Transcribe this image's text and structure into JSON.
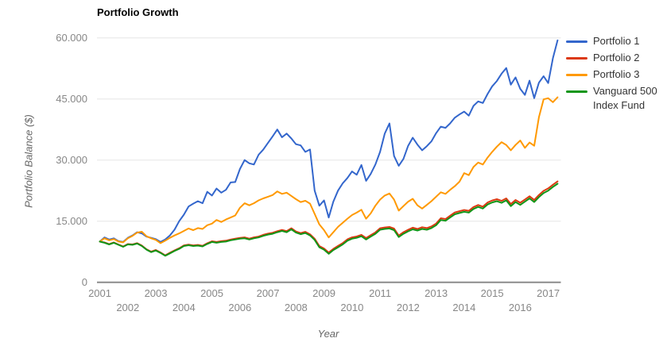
{
  "title": "Portfolio Growth",
  "axes": {
    "y_title": "Portfolio Balance ($)",
    "x_title": "Year"
  },
  "chart_data": {
    "type": "line",
    "title": "Portfolio Growth",
    "xlabel": "Year",
    "ylabel": "Portfolio Balance ($)",
    "ylim": [
      0,
      60000
    ],
    "xlim": [
      2000.9,
      2017.45
    ],
    "grid": "horizontal",
    "legend_position": "right",
    "y_ticks": [
      {
        "value": 60000,
        "label": "60.000"
      },
      {
        "value": 45000,
        "label": "45.000"
      },
      {
        "value": 30000,
        "label": "30.000"
      },
      {
        "value": 15000,
        "label": "15.000"
      },
      {
        "value": 0,
        "label": "0"
      }
    ],
    "x_ticks": [
      2001,
      2002,
      2003,
      2004,
      2005,
      2006,
      2007,
      2008,
      2009,
      2010,
      2011,
      2012,
      2013,
      2014,
      2015,
      2016,
      2017
    ],
    "x_start": 2001,
    "x_step_years": 0.16667,
    "series": [
      {
        "name": "Portfolio 1",
        "color": "#3366cc",
        "values": [
          10000,
          11000,
          10500,
          10800,
          10100,
          9900,
          10900,
          11500,
          12300,
          12000,
          11200,
          10900,
          10600,
          9900,
          10500,
          11500,
          12900,
          15000,
          16600,
          18600,
          19300,
          19900,
          19400,
          22200,
          21300,
          23000,
          22000,
          22700,
          24500,
          24600,
          27800,
          30000,
          29200,
          28900,
          31300,
          32600,
          34200,
          35800,
          37500,
          35600,
          36500,
          35300,
          33900,
          33600,
          32000,
          32600,
          22500,
          18800,
          20100,
          15900,
          19800,
          22500,
          24300,
          25600,
          27200,
          26400,
          28800,
          24900,
          26600,
          28900,
          32000,
          36500,
          39000,
          31000,
          28600,
          30300,
          33500,
          35500,
          33800,
          32400,
          33400,
          34600,
          36600,
          38200,
          37900,
          39000,
          40400,
          41200,
          41900,
          40900,
          43300,
          44400,
          44000,
          46200,
          48100,
          49400,
          51200,
          52600,
          48500,
          50300,
          47500,
          46000,
          49500,
          45200,
          49000,
          50600,
          48900,
          55000,
          59400
        ]
      },
      {
        "name": "Portfolio 2",
        "color": "#dc3912",
        "values": [
          10000,
          9770,
          9370,
          9780,
          9280,
          8790,
          9390,
          9300,
          9600,
          9010,
          8110,
          7520,
          7920,
          7330,
          6630,
          7240,
          7840,
          8350,
          9050,
          9260,
          9060,
          9170,
          8970,
          9580,
          10080,
          9890,
          10090,
          10200,
          10500,
          10710,
          10910,
          11020,
          10720,
          11030,
          11230,
          11640,
          11940,
          12150,
          12550,
          12860,
          12560,
          13270,
          12470,
          12080,
          12380,
          11790,
          10690,
          8900,
          8300,
          7310,
          8210,
          8920,
          9620,
          10530,
          11030,
          11240,
          11640,
          10850,
          11550,
          12260,
          13260,
          13470,
          13570,
          13180,
          11480,
          12290,
          12890,
          13400,
          13100,
          13510,
          13310,
          13720,
          14420,
          15730,
          15530,
          16340,
          17140,
          17450,
          17750,
          17560,
          18460,
          18970,
          18570,
          19580,
          20080,
          20390,
          19990,
          20600,
          19200,
          20210,
          19510,
          20320,
          21120,
          20230,
          21430,
          22440,
          23040,
          23950,
          24750
        ]
      },
      {
        "name": "Portfolio 3",
        "color": "#ff9900",
        "values": [
          10000,
          10800,
          10300,
          10600,
          10000,
          9800,
          10800,
          11400,
          12200,
          12400,
          11300,
          10800,
          10400,
          9600,
          10200,
          10900,
          11500,
          12000,
          12600,
          13200,
          12800,
          13300,
          13100,
          14000,
          14400,
          15300,
          14800,
          15400,
          15900,
          16400,
          18300,
          19400,
          18900,
          19400,
          20100,
          20600,
          21000,
          21400,
          22300,
          21700,
          22000,
          21200,
          20400,
          19700,
          20000,
          19300,
          16800,
          14200,
          12800,
          11000,
          12300,
          13600,
          14600,
          15600,
          16500,
          17100,
          17800,
          15600,
          16900,
          18800,
          20300,
          21300,
          21800,
          20300,
          17600,
          18700,
          19800,
          20500,
          18900,
          18100,
          19000,
          19900,
          21000,
          22100,
          21700,
          22700,
          23600,
          24700,
          26800,
          26300,
          28300,
          29400,
          28900,
          30600,
          32000,
          33300,
          34400,
          33700,
          32400,
          33700,
          34800,
          33000,
          34300,
          33500,
          40500,
          44900,
          45200,
          44200,
          45400
        ]
      },
      {
        "name": "Vanguard 500 Index Fund",
        "color": "#109618",
        "values": [
          10000,
          9700,
          9300,
          9700,
          9200,
          8700,
          9300,
          9200,
          9500,
          8900,
          8000,
          7400,
          7800,
          7200,
          6500,
          7100,
          7700,
          8200,
          8900,
          9100,
          8900,
          9000,
          8800,
          9400,
          9900,
          9700,
          9900,
          10000,
          10300,
          10500,
          10700,
          10800,
          10500,
          10800,
          11000,
          11400,
          11700,
          11900,
          12300,
          12600,
          12300,
          13000,
          12200,
          11800,
          12100,
          11500,
          10400,
          8600,
          8000,
          7000,
          7900,
          8600,
          9300,
          10200,
          10700,
          10900,
          11300,
          10500,
          11200,
          11900,
          12900,
          13100,
          13200,
          12800,
          11100,
          11900,
          12500,
          13000,
          12700,
          13100,
          12900,
          13300,
          14000,
          15300,
          15100,
          15900,
          16700,
          17000,
          17300,
          17100,
          18000,
          18500,
          18100,
          19100,
          19600,
          19900,
          19500,
          20100,
          18700,
          19700,
          19000,
          19800,
          20600,
          19700,
          20900,
          21900,
          22500,
          23400,
          24200
        ]
      }
    ]
  },
  "legend": {
    "items": [
      {
        "label": "Portfolio 1"
      },
      {
        "label": "Portfolio 2"
      },
      {
        "label": "Portfolio 3"
      },
      {
        "label": "Vanguard 500 Index Fund"
      }
    ]
  }
}
